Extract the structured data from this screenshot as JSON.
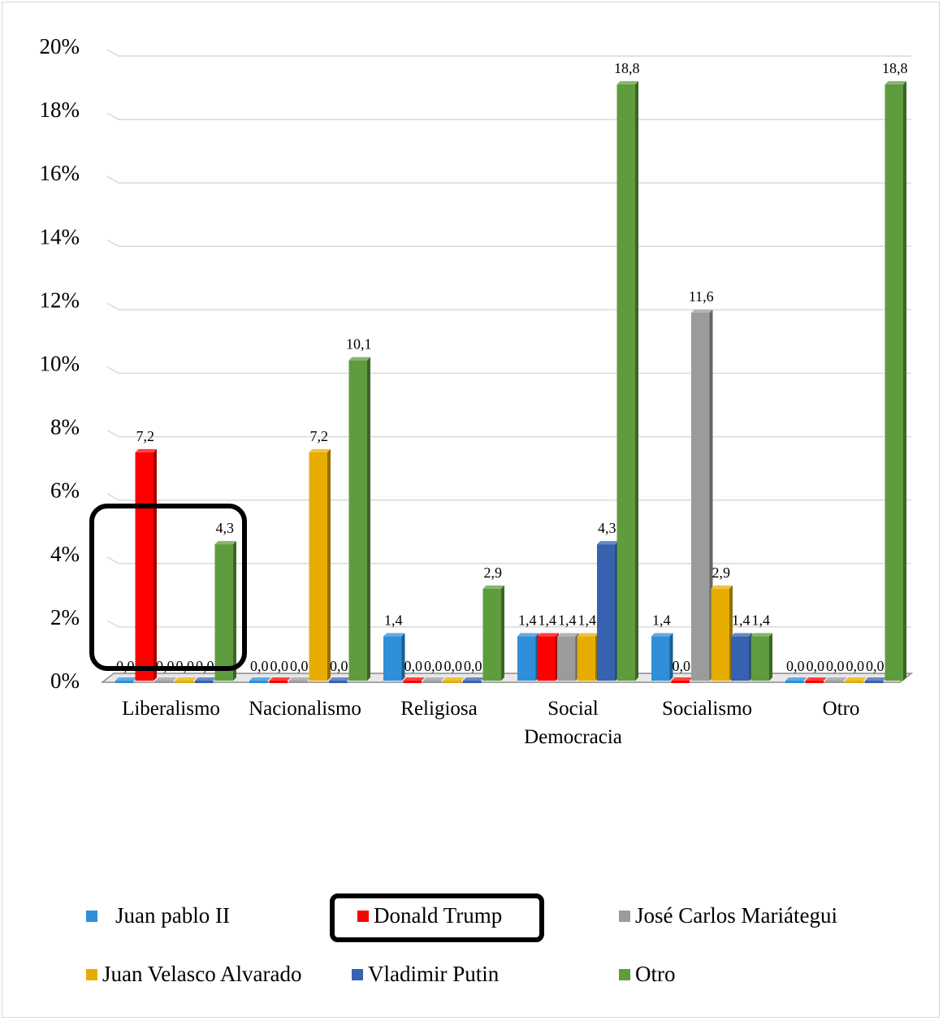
{
  "chart_data": {
    "type": "bar",
    "categories": [
      "Liberalismo",
      "Nacionalismo",
      "Religiosa",
      "Social Democracia",
      "Socialismo",
      "Otro"
    ],
    "category_lines": [
      [
        "Liberalismo"
      ],
      [
        "Nacionalismo"
      ],
      [
        "Religiosa"
      ],
      [
        "Social",
        "Democracia"
      ],
      [
        "Socialismo"
      ],
      [
        "Otro"
      ]
    ],
    "series": [
      {
        "name": "Juan pablo II",
        "color": "#2f8fd8",
        "values": [
          0.0,
          0.0,
          1.4,
          1.4,
          1.4,
          0.0
        ]
      },
      {
        "name": "Donald Trump",
        "color": "#ff0000",
        "values": [
          7.2,
          0.0,
          0.0,
          1.4,
          0.0,
          0.0
        ]
      },
      {
        "name": "José Carlos Mariátegui",
        "color": "#9b9b9b",
        "values": [
          0.0,
          0.0,
          0.0,
          1.4,
          11.6,
          0.0
        ]
      },
      {
        "name": "Juan Velasco Alvarado",
        "color": "#e6ad00",
        "values": [
          0.0,
          7.2,
          0.0,
          1.4,
          2.9,
          0.0
        ]
      },
      {
        "name": "Vladimir Putin",
        "color": "#3762b0",
        "values": [
          0.0,
          0.0,
          0.0,
          4.3,
          1.4,
          0.0
        ]
      },
      {
        "name": "Otro",
        "color": "#5e9c3e",
        "values": [
          4.3,
          10.1,
          2.9,
          18.8,
          1.4,
          18.8
        ]
      }
    ],
    "data_labels": [
      [
        "0,0",
        "0,0",
        "1,4",
        "1,4",
        "1,4",
        "0,0"
      ],
      [
        "7,2",
        "0,0",
        "0,0",
        "1,4",
        "0,0",
        "0,0"
      ],
      [
        "0,0",
        "0,0",
        "0,0",
        "1,4",
        "11,6",
        "0,0"
      ],
      [
        "0,0",
        "7,2",
        "0,0",
        "1,4",
        "2,9",
        "0,0"
      ],
      [
        "0,0",
        "0,0",
        "0,0",
        "4,3",
        "1,4",
        "0,0"
      ],
      [
        "4,3",
        "10,1",
        "2,9",
        "18,8",
        "1,4",
        "18,8"
      ]
    ],
    "y_ticks": [
      "0%",
      "2%",
      "4%",
      "6%",
      "8%",
      "10%",
      "12%",
      "14%",
      "16%",
      "18%",
      "20%"
    ],
    "ylim": [
      0,
      20
    ],
    "grid": true,
    "legend_position": "bottom",
    "highlighted": {
      "category": "Liberalismo",
      "series": "Donald Trump"
    }
  }
}
